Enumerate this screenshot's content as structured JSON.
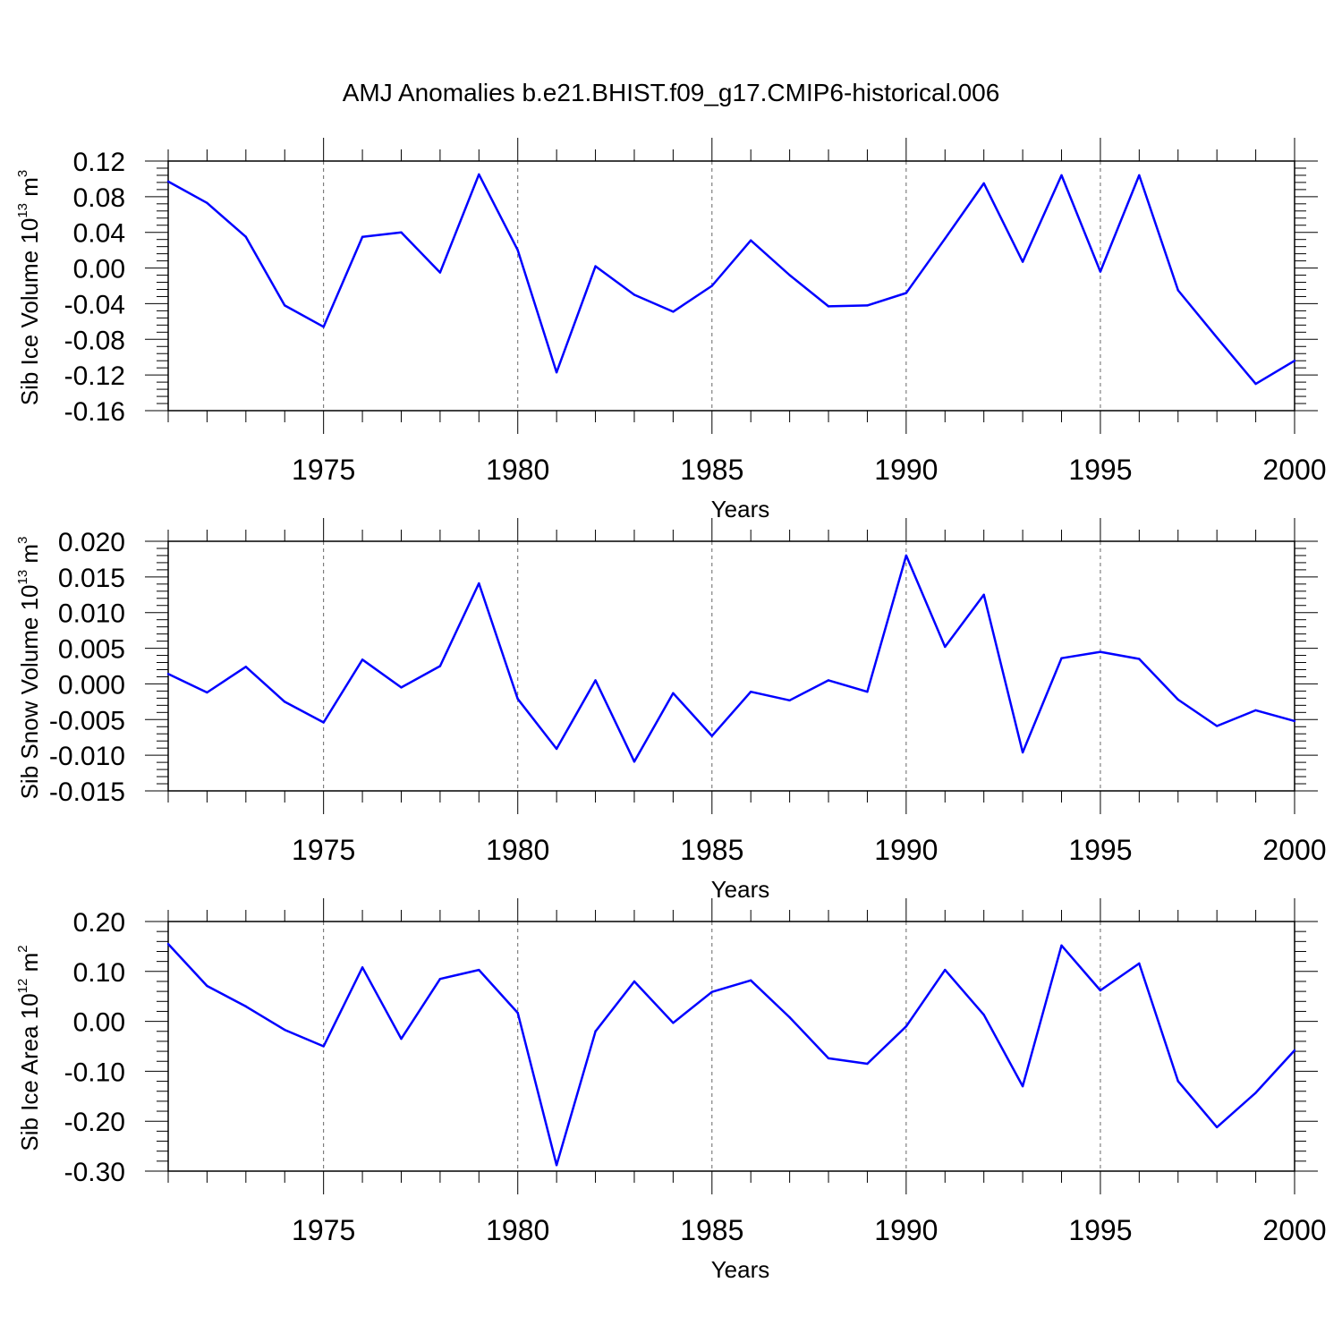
{
  "title": "AMJ Anomalies b.e21.BHIST.f09_g17.CMIP6-historical.006",
  "colors": {
    "series": "#0000ff",
    "axis": "#000000",
    "grid": "#000000"
  },
  "chart_data": [
    {
      "type": "line",
      "ylabel": "Sib Ice Volume 10",
      "ylabel_exp": "13",
      "ylabel_unit": " m",
      "ylabel_unit_exp": "3",
      "xlabel": "Years",
      "xlim": [
        1971,
        2000
      ],
      "ylim": [
        -0.16,
        0.12
      ],
      "xticks": [
        1975,
        1980,
        1985,
        1990,
        1995,
        2000
      ],
      "xtick_labels": [
        "1975",
        "1980",
        "1985",
        "1990",
        "1995",
        "2000"
      ],
      "yticks": [
        0.12,
        0.08,
        0.04,
        0.0,
        -0.04,
        -0.08,
        -0.12,
        -0.16
      ],
      "ytick_labels": [
        "0.12",
        "0.08",
        "0.04",
        "0.00",
        "-0.04",
        "-0.08",
        "-0.12",
        "-0.16"
      ],
      "grid_x": true,
      "x": [
        1971,
        1972,
        1973,
        1974,
        1975,
        1976,
        1977,
        1978,
        1979,
        1980,
        1981,
        1982,
        1983,
        1984,
        1985,
        1986,
        1987,
        1988,
        1989,
        1990,
        1991,
        1992,
        1993,
        1994,
        1995,
        1996,
        1997,
        1998,
        1999,
        2000
      ],
      "values": [
        0.097,
        0.073,
        0.035,
        -0.042,
        -0.066,
        0.035,
        0.04,
        -0.005,
        0.105,
        0.02,
        -0.117,
        0.002,
        -0.03,
        -0.049,
        -0.02,
        0.031,
        -0.008,
        -0.043,
        -0.042,
        -0.028,
        0.033,
        0.095,
        0.007,
        0.104,
        -0.004,
        0.104,
        -0.025,
        -0.078,
        -0.13,
        -0.104
      ]
    },
    {
      "type": "line",
      "ylabel": "Sib Snow Volume 10",
      "ylabel_exp": "13",
      "ylabel_unit": " m",
      "ylabel_unit_exp": "3",
      "xlabel": "Years",
      "xlim": [
        1971,
        2000
      ],
      "ylim": [
        -0.015,
        0.02
      ],
      "xticks": [
        1975,
        1980,
        1985,
        1990,
        1995,
        2000
      ],
      "xtick_labels": [
        "1975",
        "1980",
        "1985",
        "1990",
        "1995",
        "2000"
      ],
      "yticks": [
        0.02,
        0.015,
        0.01,
        0.005,
        0.0,
        -0.005,
        -0.01,
        -0.015
      ],
      "ytick_labels": [
        "0.020",
        "0.015",
        "0.010",
        "0.005",
        "0.000",
        "-0.005",
        "-0.010",
        "-0.015"
      ],
      "grid_x": true,
      "x": [
        1971,
        1972,
        1973,
        1974,
        1975,
        1976,
        1977,
        1978,
        1979,
        1980,
        1981,
        1982,
        1983,
        1984,
        1985,
        1986,
        1987,
        1988,
        1989,
        1990,
        1991,
        1992,
        1993,
        1994,
        1995,
        1996,
        1997,
        1998,
        1999,
        2000
      ],
      "values": [
        0.0014,
        -0.0012,
        0.0024,
        -0.0025,
        -0.0054,
        0.0034,
        -0.0005,
        0.0025,
        0.0141,
        -0.0021,
        -0.0091,
        0.0005,
        -0.0109,
        -0.0013,
        -0.0073,
        -0.0011,
        -0.0023,
        0.0005,
        -0.0011,
        0.018,
        0.0052,
        0.0125,
        -0.0096,
        0.0036,
        0.0045,
        0.0035,
        -0.0022,
        -0.0059,
        -0.0037,
        -0.0052
      ]
    },
    {
      "type": "line",
      "ylabel": "Sib Ice Area 10",
      "ylabel_exp": "12",
      "ylabel_unit": " m",
      "ylabel_unit_exp": "2",
      "xlabel": "Years",
      "xlim": [
        1971,
        2000
      ],
      "ylim": [
        -0.3,
        0.2
      ],
      "xticks": [
        1975,
        1980,
        1985,
        1990,
        1995,
        2000
      ],
      "xtick_labels": [
        "1975",
        "1980",
        "1985",
        "1990",
        "1995",
        "2000"
      ],
      "yticks": [
        0.2,
        0.1,
        0.0,
        -0.1,
        -0.2,
        -0.3
      ],
      "ytick_labels": [
        "0.20",
        "0.10",
        "0.00",
        "-0.10",
        "-0.20",
        "-0.30"
      ],
      "grid_x": true,
      "x": [
        1971,
        1972,
        1973,
        1974,
        1975,
        1976,
        1977,
        1978,
        1979,
        1980,
        1981,
        1982,
        1983,
        1984,
        1985,
        1986,
        1987,
        1988,
        1989,
        1990,
        1991,
        1992,
        1993,
        1994,
        1995,
        1996,
        1997,
        1998,
        1999,
        2000
      ],
      "values": [
        0.155,
        0.071,
        0.03,
        -0.017,
        -0.05,
        0.108,
        -0.035,
        0.085,
        0.103,
        0.017,
        -0.288,
        -0.02,
        0.08,
        -0.003,
        0.059,
        0.082,
        0.008,
        -0.074,
        -0.085,
        -0.01,
        0.103,
        0.013,
        -0.13,
        0.152,
        0.062,
        0.116,
        -0.12,
        -0.212,
        -0.143,
        -0.058
      ]
    }
  ]
}
